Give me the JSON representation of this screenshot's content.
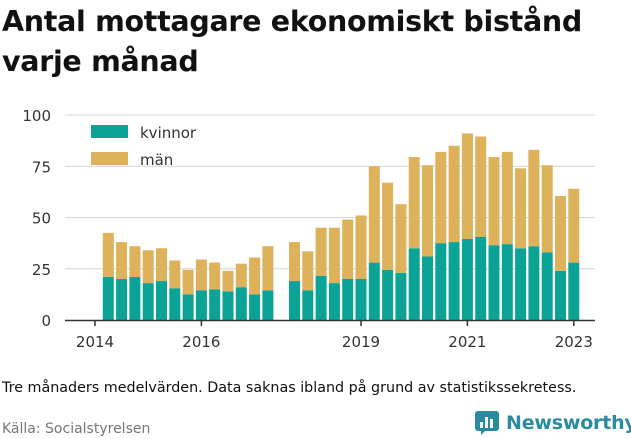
{
  "title": "Antal mottagare ekonomiskt bistånd varje månad",
  "caption": "Tre månaders medelvärden. Data saknas ibland på grund av statistikssekretess.",
  "source": "Källa: Socialstyrelsen",
  "brand": {
    "name": "Newsworthy",
    "logo_icon": "bar-chart-logo-icon",
    "color": "#2a8aa0"
  },
  "colors": {
    "kvinnor": "#0aa396",
    "man": "#ddb25a",
    "grid": "#d6d6d6",
    "axis": "#333333"
  },
  "chart_data": {
    "type": "bar",
    "stacked": true,
    "title": "Antal mottagare ekonomiskt bistånd varje månad",
    "x_ticks": [
      "2014",
      "2016",
      "2019",
      "2021",
      "2023"
    ],
    "y_ticks": [
      "0",
      "25",
      "50",
      "75",
      "100"
    ],
    "ylim": [
      0,
      100
    ],
    "grid": "horizontal",
    "legend_position": "top-left",
    "legend": [
      "kvinnor",
      "män"
    ],
    "categories": [
      "2014-04",
      "2014-07",
      "2014-10",
      "2015-01",
      "2015-04",
      "2015-07",
      "2015-10",
      "2016-01",
      "2016-04",
      "2016-07",
      "2016-10",
      "2017-01",
      "2017-04",
      "2017-10",
      "2018-01",
      "2018-04",
      "2018-07",
      "2018-10",
      "2019-01",
      "2019-04",
      "2019-07",
      "2019-10",
      "2020-01",
      "2020-04",
      "2020-07",
      "2020-10",
      "2021-01",
      "2021-04",
      "2021-07",
      "2021-10",
      "2022-01",
      "2022-04",
      "2022-07",
      "2022-10",
      "2023-01"
    ],
    "series": [
      {
        "name": "kvinnor",
        "values": [
          21,
          20,
          21,
          18,
          19,
          15.5,
          12.5,
          14.5,
          15,
          14,
          16,
          12.5,
          14.5,
          19,
          14.5,
          21.5,
          18,
          20,
          20,
          28,
          24.5,
          23,
          35,
          31,
          37.5,
          38,
          39.5,
          40.5,
          36.5,
          37,
          35,
          36,
          33,
          24,
          28
        ]
      },
      {
        "name": "män",
        "values": [
          21.5,
          18,
          15,
          16,
          16,
          13.5,
          12,
          15,
          13,
          10,
          11.5,
          18,
          21.5,
          19,
          19,
          23.5,
          27,
          29,
          31,
          47,
          42.5,
          33.5,
          44.5,
          44.5,
          44.5,
          47,
          51.5,
          49,
          43,
          45,
          39,
          47,
          42.5,
          36.5,
          36
        ]
      }
    ]
  }
}
